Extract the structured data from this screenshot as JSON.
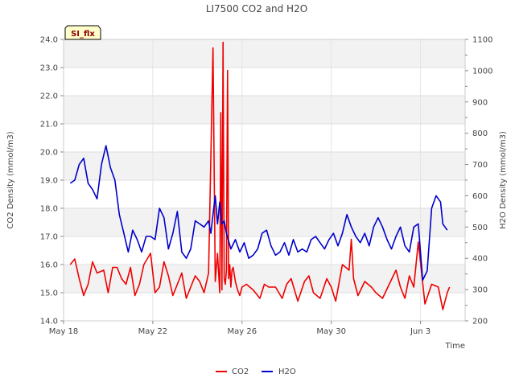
{
  "chart_data": {
    "type": "line",
    "title": "LI7500 CO2 and H2O",
    "badge": "SI_flx",
    "xlabel": "Time",
    "ylabel_left": "CO2 Density (mmol/m3)",
    "ylabel_right": "H2O Density (mmol/m3)",
    "x_ticks": [
      "May 18",
      "May 22",
      "May 26",
      "May 30",
      "Jun 3"
    ],
    "x_tick_days": [
      0,
      4,
      8,
      12,
      16
    ],
    "xlim_days": [
      0,
      18
    ],
    "ylim_left": [
      14.0,
      24.0
    ],
    "left_ticks": [
      "14.0",
      "15.0",
      "16.0",
      "17.0",
      "18.0",
      "19.0",
      "20.0",
      "21.0",
      "22.0",
      "23.0",
      "24.0"
    ],
    "ylim_right": [
      200,
      1100
    ],
    "right_ticks": [
      "200",
      "300",
      "400",
      "500",
      "600",
      "700",
      "800",
      "900",
      "1000",
      "1100"
    ],
    "grid": true,
    "legend_position": "bottom-center",
    "series": [
      {
        "name": "CO2",
        "axis": "left",
        "color": "#ee0000",
        "days": [
          0.3,
          0.5,
          0.7,
          0.9,
          1.1,
          1.3,
          1.5,
          1.8,
          2.0,
          2.2,
          2.4,
          2.6,
          2.8,
          3.0,
          3.2,
          3.4,
          3.6,
          3.9,
          4.1,
          4.3,
          4.5,
          4.7,
          4.9,
          5.1,
          5.3,
          5.5,
          5.7,
          5.9,
          6.1,
          6.3,
          6.5,
          6.7,
          6.8,
          6.9,
          7.0,
          7.05,
          7.1,
          7.15,
          7.2,
          7.25,
          7.3,
          7.35,
          7.4,
          7.45,
          7.5,
          7.55,
          7.6,
          7.7,
          7.8,
          7.9,
          8.0,
          8.2,
          8.5,
          8.8,
          9.0,
          9.2,
          9.5,
          9.8,
          10.0,
          10.2,
          10.5,
          10.8,
          11.0,
          11.2,
          11.5,
          11.8,
          12.0,
          12.2,
          12.5,
          12.8,
          12.9,
          13.0,
          13.2,
          13.5,
          13.8,
          14.0,
          14.3,
          14.6,
          14.9,
          15.1,
          15.3,
          15.5,
          15.7,
          15.9,
          16.2,
          16.5,
          16.8,
          17.0,
          17.2,
          17.3
        ],
        "values": [
          16.0,
          16.2,
          15.5,
          14.9,
          15.3,
          16.1,
          15.7,
          15.8,
          15.0,
          15.9,
          15.9,
          15.5,
          15.3,
          15.9,
          14.9,
          15.3,
          16.0,
          16.4,
          15.0,
          15.2,
          16.1,
          15.6,
          14.9,
          15.3,
          15.7,
          14.8,
          15.2,
          15.6,
          15.4,
          15.0,
          15.7,
          23.7,
          15.4,
          16.4,
          15.0,
          21.4,
          15.1,
          23.9,
          15.5,
          15.3,
          15.8,
          22.9,
          15.5,
          16.0,
          15.2,
          15.8,
          15.9,
          15.4,
          15.1,
          14.9,
          15.2,
          15.3,
          15.1,
          14.8,
          15.3,
          15.2,
          15.2,
          14.8,
          15.3,
          15.5,
          14.7,
          15.4,
          15.6,
          15.0,
          14.8,
          15.5,
          15.2,
          14.7,
          16.0,
          15.8,
          16.9,
          15.5,
          14.9,
          15.4,
          15.2,
          15.0,
          14.8,
          15.3,
          15.8,
          15.2,
          14.8,
          15.6,
          15.2,
          16.8,
          14.6,
          15.3,
          15.2,
          14.4,
          15.0,
          15.2
        ]
      },
      {
        "name": "H2O",
        "axis": "right",
        "color": "#0000cc",
        "days": [
          0.3,
          0.5,
          0.7,
          0.9,
          1.1,
          1.3,
          1.5,
          1.7,
          1.9,
          2.1,
          2.3,
          2.5,
          2.7,
          2.9,
          3.1,
          3.3,
          3.5,
          3.7,
          3.9,
          4.1,
          4.3,
          4.5,
          4.7,
          4.9,
          5.1,
          5.3,
          5.5,
          5.7,
          5.9,
          6.1,
          6.3,
          6.5,
          6.6,
          6.7,
          6.8,
          6.9,
          7.0,
          7.1,
          7.2,
          7.3,
          7.5,
          7.7,
          7.9,
          8.1,
          8.3,
          8.5,
          8.7,
          8.9,
          9.1,
          9.3,
          9.5,
          9.7,
          9.9,
          10.1,
          10.3,
          10.5,
          10.7,
          10.9,
          11.1,
          11.3,
          11.5,
          11.7,
          11.9,
          12.1,
          12.3,
          12.5,
          12.7,
          12.9,
          13.1,
          13.3,
          13.5,
          13.7,
          13.9,
          14.1,
          14.3,
          14.5,
          14.7,
          14.9,
          15.1,
          15.3,
          15.5,
          15.7,
          15.9,
          16.1,
          16.3,
          16.5,
          16.7,
          16.9,
          17.0,
          17.2
        ],
        "values": [
          640,
          650,
          700,
          720,
          640,
          620,
          590,
          700,
          760,
          690,
          650,
          540,
          480,
          420,
          490,
          460,
          420,
          470,
          470,
          460,
          560,
          530,
          430,
          480,
          550,
          420,
          400,
          430,
          520,
          510,
          500,
          520,
          480,
          540,
          600,
          510,
          580,
          510,
          520,
          480,
          430,
          460,
          420,
          450,
          400,
          410,
          430,
          480,
          490,
          440,
          410,
          420,
          450,
          410,
          460,
          420,
          430,
          420,
          460,
          470,
          450,
          430,
          460,
          480,
          440,
          480,
          540,
          500,
          470,
          450,
          480,
          440,
          500,
          530,
          500,
          460,
          430,
          470,
          500,
          440,
          420,
          500,
          510,
          330,
          360,
          560,
          600,
          580,
          510,
          490
        ]
      }
    ]
  }
}
